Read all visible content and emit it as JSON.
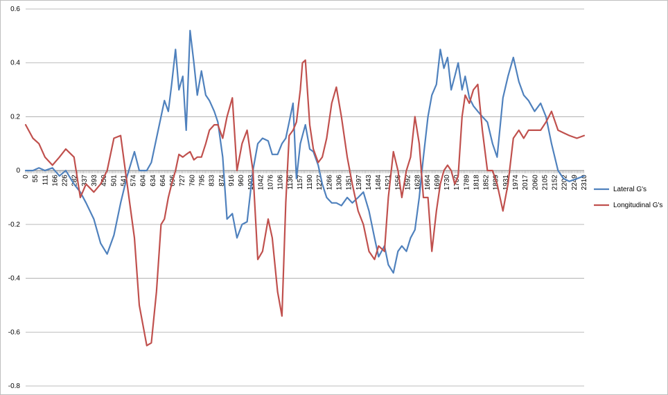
{
  "chart_data": {
    "type": "line",
    "title": "",
    "xlabel": "",
    "ylabel": "",
    "ylim": [
      -0.8,
      0.6
    ],
    "y_ticks": [
      0.6,
      0.4,
      0.2,
      0,
      -0.2,
      -0.4,
      -0.6,
      -0.8
    ],
    "y_tick_labels": [
      "0.6",
      "0.4",
      "0.2",
      "0",
      "-0.2",
      "-0.4",
      "-0.6",
      "-0.8"
    ],
    "grid": "horizontal",
    "legend_position": "right",
    "x_tick_labels": [
      "0",
      "55",
      "111",
      "166",
      "226",
      "282",
      "337",
      "393",
      "450",
      "501",
      "541",
      "574",
      "604",
      "634",
      "664",
      "696",
      "727",
      "760",
      "795",
      "833",
      "874",
      "916",
      "960",
      "1003",
      "1042",
      "1076",
      "1106",
      "1136",
      "1157",
      "1190",
      "1227",
      "1266",
      "1306",
      "1351",
      "1397",
      "1443",
      "1484",
      "1521",
      "1556",
      "1592",
      "1628",
      "1664",
      "1699",
      "1730",
      "1760",
      "1789",
      "1818",
      "1852",
      "1889",
      "1931",
      "1974",
      "2017",
      "2060",
      "2105",
      "2152",
      "2202",
      "2249",
      "2310"
    ],
    "x": [
      0,
      30,
      55,
      80,
      111,
      140,
      166,
      200,
      226,
      250,
      282,
      310,
      337,
      365,
      393,
      420,
      450,
      470,
      501,
      520,
      541,
      560,
      574,
      590,
      604,
      620,
      634,
      650,
      664,
      680,
      696,
      710,
      727,
      745,
      760,
      780,
      795,
      815,
      833,
      855,
      874,
      895,
      916,
      940,
      960,
      980,
      1003,
      1020,
      1042,
      1060,
      1076,
      1090,
      1106,
      1120,
      1136,
      1145,
      1157,
      1175,
      1190,
      1210,
      1227,
      1245,
      1266,
      1285,
      1306,
      1330,
      1351,
      1375,
      1397,
      1420,
      1443,
      1460,
      1484,
      1500,
      1521,
      1540,
      1556,
      1575,
      1592,
      1610,
      1628,
      1645,
      1664,
      1680,
      1699,
      1715,
      1730,
      1745,
      1760,
      1775,
      1789,
      1805,
      1818,
      1835,
      1852,
      1870,
      1889,
      1910,
      1931,
      1950,
      1974,
      1995,
      2017,
      2040,
      2060,
      2080,
      2105,
      2130,
      2152,
      2175,
      2202,
      2225,
      2249,
      2280,
      2310
    ],
    "series": [
      {
        "name": "Lateral G's",
        "color": "#4f81bd",
        "values": [
          0.0,
          0.0,
          0.01,
          0.0,
          0.01,
          -0.02,
          0.0,
          -0.05,
          -0.08,
          -0.12,
          -0.18,
          -0.27,
          -0.31,
          -0.24,
          -0.12,
          -0.02,
          0.07,
          0.0,
          0.0,
          0.03,
          0.12,
          0.2,
          0.26,
          0.22,
          0.32,
          0.45,
          0.3,
          0.35,
          0.15,
          0.52,
          0.4,
          0.28,
          0.37,
          0.28,
          0.26,
          0.22,
          0.18,
          0.05,
          -0.18,
          -0.16,
          -0.25,
          -0.2,
          -0.19,
          0.0,
          0.1,
          0.12,
          0.11,
          0.06,
          0.06,
          0.1,
          0.12,
          0.18,
          0.25,
          -0.03,
          0.1,
          0.13,
          0.17,
          0.08,
          0.07,
          0.02,
          -0.05,
          -0.1,
          -0.12,
          -0.12,
          -0.13,
          -0.1,
          -0.12,
          -0.1,
          -0.08,
          -0.15,
          -0.25,
          -0.32,
          -0.28,
          -0.35,
          -0.38,
          -0.3,
          -0.28,
          -0.3,
          -0.25,
          -0.22,
          -0.1,
          0.05,
          0.2,
          0.28,
          0.32,
          0.45,
          0.38,
          0.42,
          0.3,
          0.35,
          0.4,
          0.3,
          0.35,
          0.27,
          0.24,
          0.22,
          0.2,
          0.18,
          0.1,
          0.05,
          0.27,
          0.35,
          0.42,
          0.33,
          0.28,
          0.26,
          0.22,
          0.25,
          0.2,
          0.1,
          0.0,
          -0.03,
          -0.04,
          -0.03,
          -0.02
        ]
      },
      {
        "name": "Longitudinal G's",
        "color": "#c0504d",
        "values": [
          0.17,
          0.12,
          0.1,
          0.05,
          0.02,
          0.05,
          0.08,
          0.05,
          -0.1,
          -0.05,
          -0.08,
          -0.05,
          0.0,
          0.12,
          0.13,
          -0.05,
          -0.25,
          -0.5,
          -0.65,
          -0.64,
          -0.45,
          -0.2,
          -0.18,
          -0.1,
          -0.05,
          0.0,
          0.06,
          0.05,
          0.06,
          0.07,
          0.04,
          0.05,
          0.05,
          0.1,
          0.15,
          0.17,
          0.17,
          0.12,
          0.2,
          0.27,
          0.0,
          0.1,
          0.15,
          0.0,
          -0.33,
          -0.3,
          -0.18,
          -0.25,
          -0.45,
          -0.54,
          -0.12,
          0.13,
          0.15,
          0.18,
          0.3,
          0.4,
          0.41,
          0.17,
          0.08,
          0.03,
          0.05,
          0.12,
          0.25,
          0.31,
          0.2,
          0.05,
          -0.05,
          -0.15,
          -0.2,
          -0.3,
          -0.33,
          -0.28,
          -0.3,
          -0.1,
          0.07,
          0.0,
          -0.1,
          0.0,
          0.05,
          0.2,
          0.1,
          -0.1,
          -0.1,
          -0.3,
          -0.15,
          -0.05,
          0.0,
          0.02,
          0.0,
          -0.05,
          -0.02,
          0.2,
          0.28,
          0.25,
          0.3,
          0.32,
          0.15,
          0.0,
          0.0,
          -0.05,
          -0.15,
          -0.05,
          0.12,
          0.15,
          0.12,
          0.15,
          0.15,
          0.15,
          0.18,
          0.22,
          0.15,
          0.14,
          0.13,
          0.12,
          0.13
        ]
      }
    ]
  }
}
